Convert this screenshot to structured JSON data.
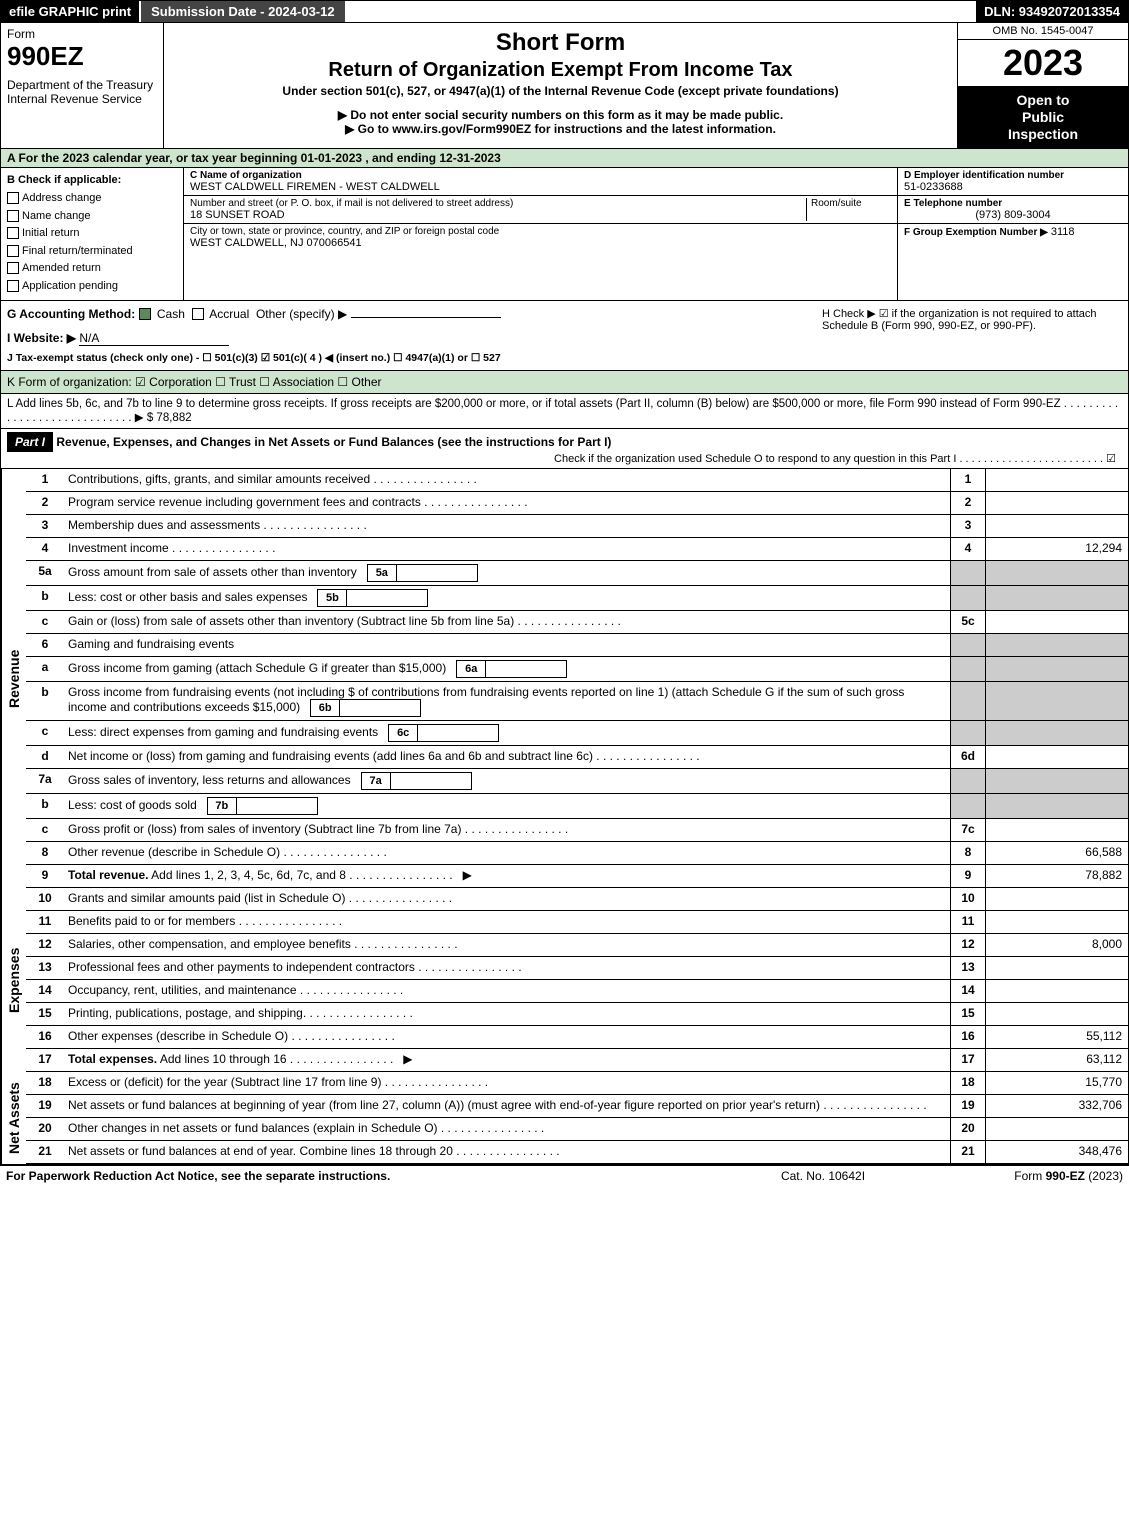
{
  "topbar": {
    "efile": "efile GRAPHIC print",
    "subdate": "Submission Date - 2024-03-12",
    "dln": "DLN: 93492072013354"
  },
  "header": {
    "form_label": "Form",
    "form_number": "990EZ",
    "dept": "Department of the Treasury\nInternal Revenue Service",
    "short_form": "Short Form",
    "return_title": "Return of Organization Exempt From Income Tax",
    "under_section": "Under section 501(c), 527, or 4947(a)(1) of the Internal Revenue Code (except private foundations)",
    "ssn_warning": "▶ Do not enter social security numbers on this form as it may be made public.",
    "goto": "▶ Go to www.irs.gov/Form990EZ for instructions and the latest information.",
    "omb": "OMB No. 1545-0047",
    "year": "2023",
    "open1": "Open to",
    "open2": "Public",
    "open3": "Inspection"
  },
  "section_a": "A  For the 2023 calendar year, or tax year beginning 01-01-2023 , and ending 12-31-2023",
  "col_b": {
    "title": "B  Check if applicable:",
    "addr": "Address change",
    "name": "Name change",
    "initial": "Initial return",
    "final": "Final return/terminated",
    "amended": "Amended return",
    "pending": "Application pending"
  },
  "col_c": {
    "label_name": "C Name of organization",
    "org_name": "WEST CALDWELL FIREMEN - WEST CALDWELL",
    "label_addr": "Number and street (or P. O. box, if mail is not delivered to street address)",
    "room": "Room/suite",
    "addr": "18 SUNSET ROAD",
    "label_city": "City or town, state or province, country, and ZIP or foreign postal code",
    "city": "WEST CALDWELL, NJ  070066541"
  },
  "col_d": {
    "label_ein": "D Employer identification number",
    "ein": "51-0233688",
    "label_phone": "E Telephone number",
    "phone": "(973) 809-3004",
    "label_group": "F Group Exemption Number  ▶",
    "group": "3118"
  },
  "row_g": {
    "g_label": "G Accounting Method:",
    "cash": "Cash",
    "accrual": "Accrual",
    "other": "Other (specify) ▶",
    "h_label": "H  Check ▶ ☑ if the organization is not required to attach Schedule B (Form 990, 990-EZ, or 990-PF).",
    "i_label": "I Website: ▶",
    "website": "N/A",
    "j_label": "J Tax-exempt status (check only one) - ☐ 501(c)(3) ☑ 501(c)( 4 ) ◀ (insert no.) ☐ 4947(a)(1) or ☐ 527"
  },
  "row_k": "K Form of organization:  ☑ Corporation  ☐ Trust  ☐ Association  ☐ Other",
  "row_l": "L Add lines 5b, 6c, and 7b to line 9 to determine gross receipts. If gross receipts are $200,000 or more, or if total assets (Part II, column (B) below) are $500,000 or more, file Form 990 instead of Form 990-EZ  . . . . . . . . . . . . . . . . . . . . . . . . . . . . .  ▶ $ 78,882",
  "part1": {
    "label": "Part I",
    "title": "Revenue, Expenses, and Changes in Net Assets or Fund Balances (see the instructions for Part I)",
    "check_o": "Check if the organization used Schedule O to respond to any question in this Part I . . . . . . . . . . . . . . . . . . . . . . . . ☑"
  },
  "side_labels": {
    "revenue": "Revenue",
    "expenses": "Expenses",
    "net": "Net Assets"
  },
  "lines": {
    "l1": {
      "num": "1",
      "desc": "Contributions, gifts, grants, and similar amounts received",
      "box": "1",
      "val": ""
    },
    "l2": {
      "num": "2",
      "desc": "Program service revenue including government fees and contracts",
      "box": "2",
      "val": ""
    },
    "l3": {
      "num": "3",
      "desc": "Membership dues and assessments",
      "box": "3",
      "val": ""
    },
    "l4": {
      "num": "4",
      "desc": "Investment income",
      "box": "4",
      "val": "12,294"
    },
    "l5a": {
      "num": "5a",
      "desc": "Gross amount from sale of assets other than inventory",
      "inline": "5a"
    },
    "l5b": {
      "num": "b",
      "desc": "Less: cost or other basis and sales expenses",
      "inline": "5b"
    },
    "l5c": {
      "num": "c",
      "desc": "Gain or (loss) from sale of assets other than inventory (Subtract line 5b from line 5a)",
      "box": "5c",
      "val": ""
    },
    "l6": {
      "num": "6",
      "desc": "Gaming and fundraising events"
    },
    "l6a": {
      "num": "a",
      "desc": "Gross income from gaming (attach Schedule G if greater than $15,000)",
      "inline": "6a"
    },
    "l6b": {
      "num": "b",
      "desc": "Gross income from fundraising events (not including $                of contributions from fundraising events reported on line 1) (attach Schedule G if the sum of such gross income and contributions exceeds $15,000)",
      "inline": "6b"
    },
    "l6c": {
      "num": "c",
      "desc": "Less: direct expenses from gaming and fundraising events",
      "inline": "6c"
    },
    "l6d": {
      "num": "d",
      "desc": "Net income or (loss) from gaming and fundraising events (add lines 6a and 6b and subtract line 6c)",
      "box": "6d",
      "val": ""
    },
    "l7a": {
      "num": "7a",
      "desc": "Gross sales of inventory, less returns and allowances",
      "inline": "7a"
    },
    "l7b": {
      "num": "b",
      "desc": "Less: cost of goods sold",
      "inline": "7b"
    },
    "l7c": {
      "num": "c",
      "desc": "Gross profit or (loss) from sales of inventory (Subtract line 7b from line 7a)",
      "box": "7c",
      "val": ""
    },
    "l8": {
      "num": "8",
      "desc": "Other revenue (describe in Schedule O)",
      "box": "8",
      "val": "66,588"
    },
    "l9": {
      "num": "9",
      "desc": "Total revenue. Add lines 1, 2, 3, 4, 5c, 6d, 7c, and 8",
      "box": "9",
      "val": "78,882",
      "arrow": "▶"
    },
    "l10": {
      "num": "10",
      "desc": "Grants and similar amounts paid (list in Schedule O)",
      "box": "10",
      "val": ""
    },
    "l11": {
      "num": "11",
      "desc": "Benefits paid to or for members",
      "box": "11",
      "val": ""
    },
    "l12": {
      "num": "12",
      "desc": "Salaries, other compensation, and employee benefits",
      "box": "12",
      "val": "8,000"
    },
    "l13": {
      "num": "13",
      "desc": "Professional fees and other payments to independent contractors",
      "box": "13",
      "val": ""
    },
    "l14": {
      "num": "14",
      "desc": "Occupancy, rent, utilities, and maintenance",
      "box": "14",
      "val": ""
    },
    "l15": {
      "num": "15",
      "desc": "Printing, publications, postage, and shipping.",
      "box": "15",
      "val": ""
    },
    "l16": {
      "num": "16",
      "desc": "Other expenses (describe in Schedule O)",
      "box": "16",
      "val": "55,112"
    },
    "l17": {
      "num": "17",
      "desc": "Total expenses. Add lines 10 through 16",
      "box": "17",
      "val": "63,112",
      "arrow": "▶"
    },
    "l18": {
      "num": "18",
      "desc": "Excess or (deficit) for the year (Subtract line 17 from line 9)",
      "box": "18",
      "val": "15,770"
    },
    "l19": {
      "num": "19",
      "desc": "Net assets or fund balances at beginning of year (from line 27, column (A)) (must agree with end-of-year figure reported on prior year's return)",
      "box": "19",
      "val": "332,706"
    },
    "l20": {
      "num": "20",
      "desc": "Other changes in net assets or fund balances (explain in Schedule O)",
      "box": "20",
      "val": ""
    },
    "l21": {
      "num": "21",
      "desc": "Net assets or fund balances at end of year. Combine lines 18 through 20",
      "box": "21",
      "val": "348,476"
    }
  },
  "footer": {
    "left": "For Paperwork Reduction Act Notice, see the separate instructions.",
    "mid": "Cat. No. 10642I",
    "right": "Form 990-EZ (2023)"
  },
  "colors": {
    "green_bg": "#cce5cc",
    "gray_shade": "#cccccc"
  }
}
